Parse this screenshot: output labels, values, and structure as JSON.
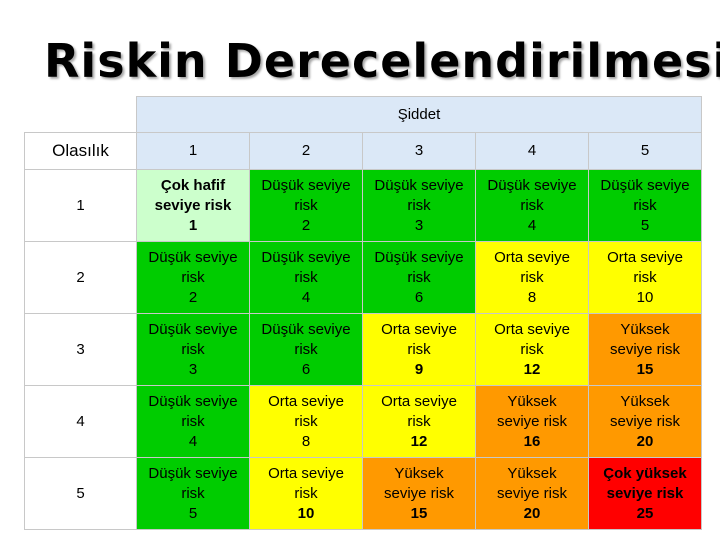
{
  "title": "Riskin Derecelendirilmesi",
  "header": {
    "severity_label": "Şiddet",
    "probability_label": "Olasılık",
    "severity_levels": [
      "1",
      "2",
      "3",
      "4",
      "5"
    ]
  },
  "rows": [
    {
      "label": "1",
      "cells": [
        {
          "line1": "Çok hafif",
          "line2": "seviye risk",
          "score": "1",
          "color": "#ccffcc",
          "bold": true
        },
        {
          "line1": "Düşük seviye",
          "line2": "risk",
          "score": "2",
          "color": "#00cc00",
          "bold": false
        },
        {
          "line1": "Düşük seviye",
          "line2": "risk",
          "score": "3",
          "color": "#00cc00",
          "bold": false
        },
        {
          "line1": "Düşük seviye",
          "line2": "risk",
          "score": "4",
          "color": "#00cc00",
          "bold": false
        },
        {
          "line1": "Düşük seviye",
          "line2": "risk",
          "score": "5",
          "color": "#00cc00",
          "bold": false
        }
      ]
    },
    {
      "label": "2",
      "cells": [
        {
          "line1": "Düşük seviye",
          "line2": "risk",
          "score": "2",
          "color": "#00cc00",
          "bold": false
        },
        {
          "line1": "Düşük seviye",
          "line2": "risk",
          "score": "4",
          "color": "#00cc00",
          "bold": false
        },
        {
          "line1": "Düşük seviye",
          "line2": "risk",
          "score": "6",
          "color": "#00cc00",
          "bold": false
        },
        {
          "line1": "Orta seviye",
          "line2": "risk",
          "score": "8",
          "color": "#ffff00",
          "bold": false
        },
        {
          "line1": "Orta seviye",
          "line2": "risk",
          "score": "10",
          "color": "#ffff00",
          "bold": false
        }
      ]
    },
    {
      "label": "3",
      "cells": [
        {
          "line1": "Düşük seviye",
          "line2": "risk",
          "score": "3",
          "color": "#00cc00",
          "bold": false
        },
        {
          "line1": "Düşük seviye",
          "line2": "risk",
          "score": "6",
          "color": "#00cc00",
          "bold": false
        },
        {
          "line1": "Orta seviye",
          "line2": "risk",
          "score": "9",
          "color": "#ffff00",
          "bold": false,
          "score_bold": true
        },
        {
          "line1": "Orta seviye",
          "line2": "risk",
          "score": "12",
          "color": "#ffff00",
          "bold": false,
          "score_bold": true
        },
        {
          "line1": "Yüksek",
          "line2": "seviye risk",
          "score": "15",
          "color": "#ff9900",
          "bold": false,
          "score_bold": true
        }
      ]
    },
    {
      "label": "4",
      "cells": [
        {
          "line1": "Düşük seviye",
          "line2": "risk",
          "score": "4",
          "color": "#00cc00",
          "bold": false
        },
        {
          "line1": "Orta seviye",
          "line2": "risk",
          "score": "8",
          "color": "#ffff00",
          "bold": false
        },
        {
          "line1": "Orta seviye",
          "line2": "risk",
          "score": "12",
          "color": "#ffff00",
          "bold": false,
          "score_bold": true
        },
        {
          "line1": "Yüksek",
          "line2": "seviye risk",
          "score": "16",
          "color": "#ff9900",
          "bold": false,
          "score_bold": true
        },
        {
          "line1": "Yüksek",
          "line2": "seviye risk",
          "score": "20",
          "color": "#ff9900",
          "bold": false,
          "score_bold": true
        }
      ]
    },
    {
      "label": "5",
      "cells": [
        {
          "line1": "Düşük seviye",
          "line2": "risk",
          "score": "5",
          "color": "#00cc00",
          "bold": false
        },
        {
          "line1": "Orta seviye",
          "line2": "risk",
          "score": "10",
          "color": "#ffff00",
          "bold": false,
          "score_bold": true
        },
        {
          "line1": "Yüksek",
          "line2": "seviye risk",
          "score": "15",
          "color": "#ff9900",
          "bold": false,
          "score_bold": true
        },
        {
          "line1": "Yüksek",
          "line2": "seviye risk",
          "score": "20",
          "color": "#ff9900",
          "bold": false,
          "score_bold": true
        },
        {
          "line1": "Çok yüksek",
          "line2": "seviye risk",
          "score": "25",
          "color": "#ff0000",
          "bold": true
        }
      ]
    }
  ]
}
